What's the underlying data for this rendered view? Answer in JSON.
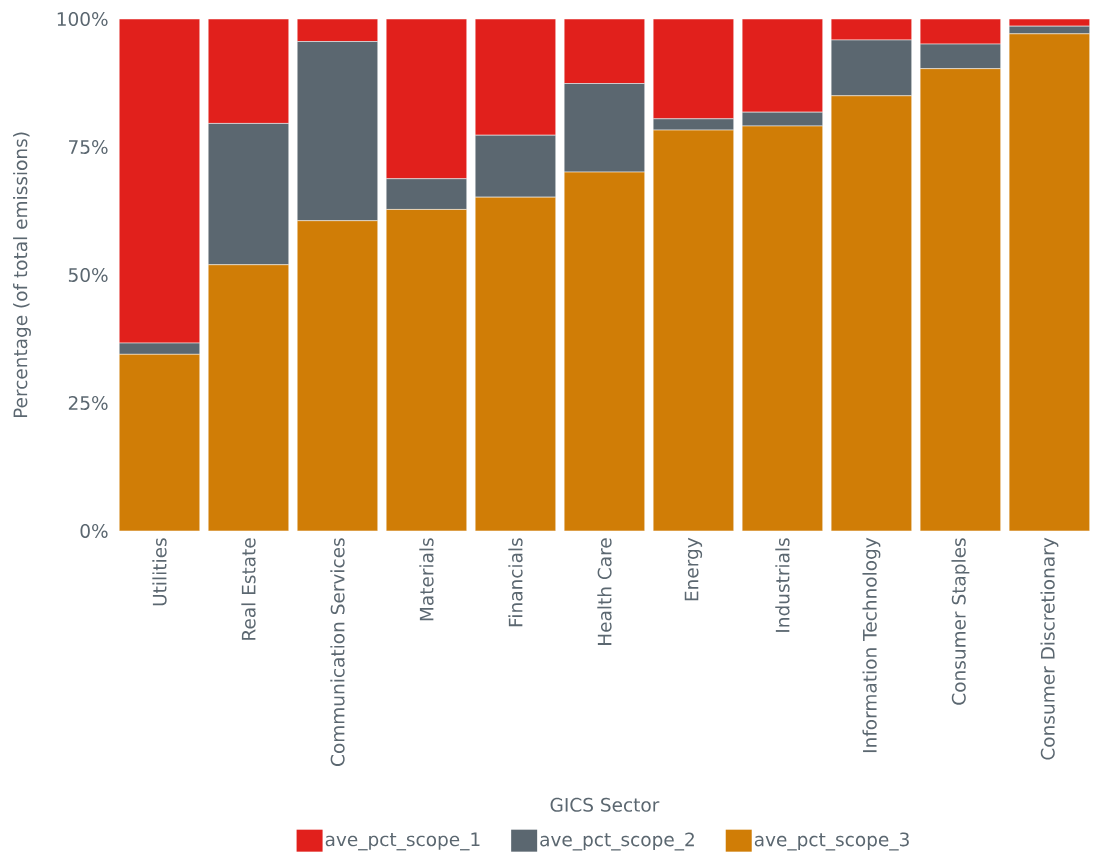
{
  "chart_data": {
    "type": "bar",
    "stacked": true,
    "xlabel": "GICS Sector",
    "ylabel": "Percentage (of total emissions)",
    "categories": [
      "Utilities",
      "Real Estate",
      "Communication Services",
      "Materials",
      "Financials",
      "Health Care",
      "Energy",
      "Industrials",
      "Information Technology",
      "Consumer Staples",
      "Consumer Discretionary"
    ],
    "series": [
      {
        "name": "ave_pct_scope_3",
        "color": "#d07d06",
        "values": [
          34.5,
          52.0,
          60.6,
          62.8,
          65.2,
          70.1,
          78.3,
          79.1,
          85.0,
          90.3,
          97.1
        ]
      },
      {
        "name": "ave_pct_scope_2",
        "color": "#5b6770",
        "values": [
          2.2,
          27.6,
          35.0,
          6.0,
          12.1,
          17.3,
          2.2,
          2.7,
          10.9,
          4.8,
          1.5
        ]
      },
      {
        "name": "ave_pct_scope_1",
        "color": "#e1201c",
        "values": [
          63.3,
          20.4,
          4.4,
          31.2,
          22.7,
          12.6,
          19.5,
          18.2,
          4.1,
          4.9,
          1.4
        ]
      }
    ],
    "ylim": [
      0,
      100
    ],
    "yticks": [
      {
        "value": 0,
        "label": "0%"
      },
      {
        "value": 25,
        "label": "25%"
      },
      {
        "value": 50,
        "label": "50%"
      },
      {
        "value": 75,
        "label": "75%"
      },
      {
        "value": 100,
        "label": "100%"
      }
    ],
    "grid": false,
    "legend": "bottom"
  }
}
